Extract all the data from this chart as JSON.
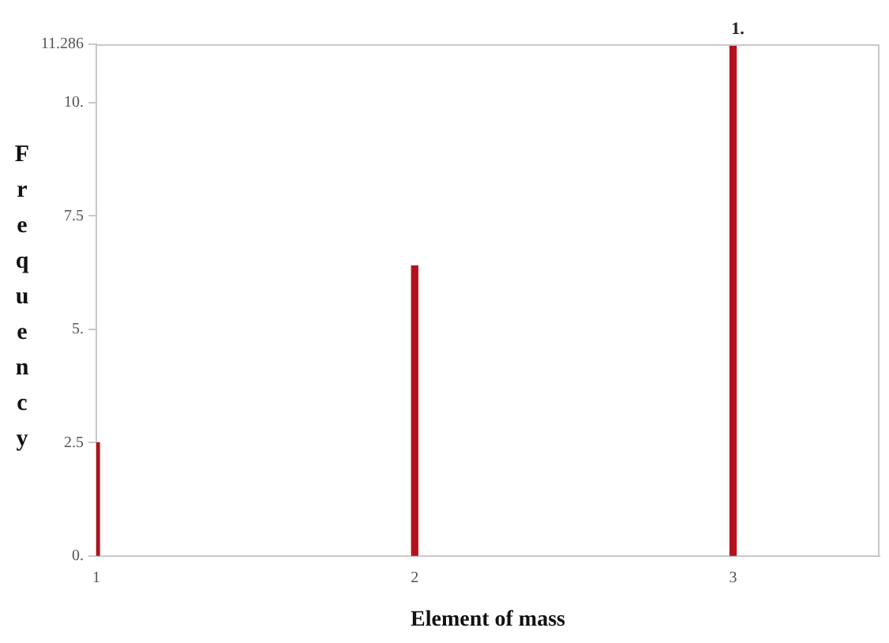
{
  "chart_data": {
    "type": "bar",
    "xlabel": "Element of mass",
    "ylabel": "Frequency",
    "x": [
      1,
      2,
      3
    ],
    "values": [
      2.5,
      6.4,
      11.286
    ],
    "color": "#b3121d",
    "xlim": [
      1,
      3.46
    ],
    "xticks": [
      1,
      2,
      3
    ],
    "ylim": [
      0,
      11.286
    ],
    "yticks": [
      {
        "value": 0,
        "label": "0."
      },
      2.5,
      {
        "value": 5,
        "label": "5."
      },
      7.5,
      {
        "value": 10,
        "label": "10."
      },
      11.286
    ],
    "annotations": [
      {
        "text": "1.",
        "x": 3,
        "y": 11.286
      }
    ],
    "grid": false,
    "legend": false
  }
}
